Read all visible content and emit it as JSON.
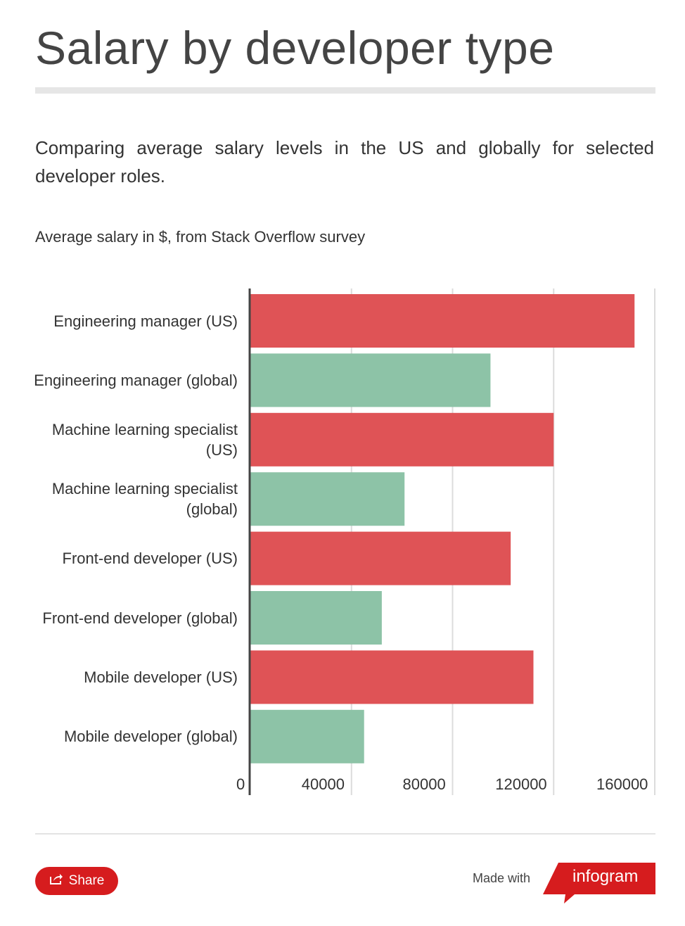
{
  "title": "Salary by developer type",
  "description": "Comparing average salary levels in the US and globally for selected developer roles.",
  "chart_data": {
    "type": "bar",
    "orientation": "horizontal",
    "title": "Average salary in $, from Stack Overflow survey",
    "categories": [
      "Engineering manager (US)",
      "Engineering manager (global)",
      "Machine learning specialist (US)",
      "Machine learning specialist (global)",
      "Front-end developer (US)",
      "Front-end developer (global)",
      "Mobile developer (US)",
      "Mobile developer (global)"
    ],
    "values": [
      152000,
      95000,
      120000,
      61000,
      103000,
      52000,
      112000,
      45000
    ],
    "groups": [
      "US",
      "global",
      "US",
      "global",
      "US",
      "global",
      "US",
      "global"
    ],
    "colors": {
      "US": "#df5356",
      "global": "#8dc3a7"
    },
    "xlim": [
      0,
      160000
    ],
    "xticks": [
      "0",
      "40000",
      "80000",
      "120000",
      "160000"
    ],
    "grid": true,
    "xlabel": "",
    "ylabel": ""
  },
  "footer": {
    "share_label": "Share",
    "made_with": "Made with",
    "brand": "infogram"
  }
}
